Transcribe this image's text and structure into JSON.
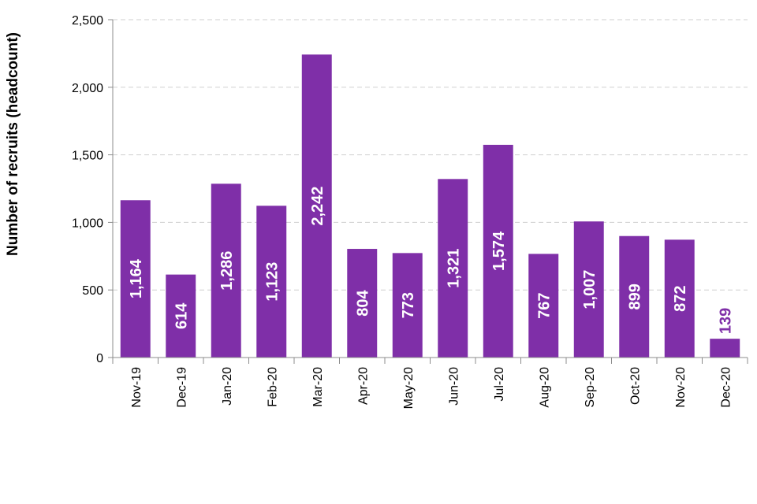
{
  "chart_data": {
    "type": "bar",
    "title": "",
    "xlabel": "",
    "ylabel": "Number of recruits (headcount)",
    "ylim": [
      0,
      2500
    ],
    "yticks": [
      0,
      500,
      1000,
      1500,
      2000,
      2500
    ],
    "ytick_labels": [
      "0",
      "500",
      "1,000",
      "1,500",
      "2,000",
      "2,500"
    ],
    "grid": true,
    "legend": "none",
    "categories": [
      "Nov-19",
      "Dec-19",
      "Jan-20",
      "Feb-20",
      "Mar-20",
      "Apr-20",
      "May-20",
      "Jun-20",
      "Jul-20",
      "Aug-20",
      "Sep-20",
      "Oct-20",
      "Nov-20",
      "Dec-20"
    ],
    "values": [
      1164,
      614,
      1286,
      1123,
      2242,
      804,
      773,
      1321,
      1574,
      767,
      1007,
      899,
      872,
      139
    ],
    "value_labels": [
      "1,164",
      "614",
      "1,286",
      "1,123",
      "2,242",
      "804",
      "773",
      "1,321",
      "1,574",
      "767",
      "1,007",
      "899",
      "872",
      "139"
    ],
    "bar_color": "#7f2fa8",
    "label_color_inside": "#ffffff",
    "label_color_outside": "#7f2fa8"
  }
}
